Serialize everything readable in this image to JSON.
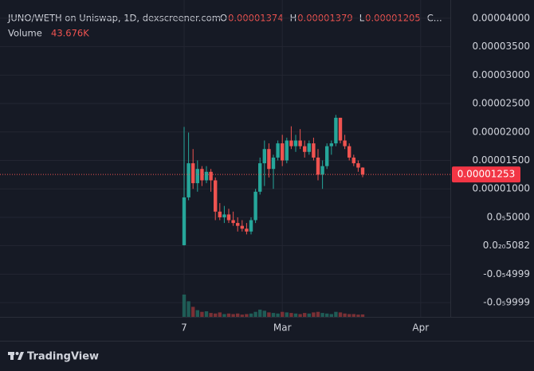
{
  "chart_data": {
    "type": "candlestick",
    "legend": {
      "title": "JUNO/WETH on Uniswap, 1D, dexscreener.com",
      "open_label": "O",
      "high_label": "H",
      "low_label": "L",
      "close_label": "C...",
      "volume_label": "Volume",
      "volume_value": "43.676K"
    },
    "x": [
      0,
      1,
      2,
      3,
      4,
      5,
      6,
      7,
      8,
      9,
      10,
      11,
      12,
      13,
      14,
      15,
      16,
      17,
      18,
      19,
      20,
      21,
      22,
      23,
      24,
      25,
      26,
      27,
      28,
      29,
      30,
      31,
      32,
      33,
      34,
      35,
      36,
      37,
      38,
      39,
      40
    ],
    "open": [
      1e-07,
      8.5e-06,
      1.45e-05,
      1.1e-05,
      1.35e-05,
      1.15e-05,
      1.3e-05,
      1.15e-05,
      6e-06,
      5e-06,
      5.5e-06,
      4.5e-06,
      4e-06,
      3.5e-06,
      3e-06,
      2.5e-06,
      4.5e-06,
      9.5e-06,
      1.45e-05,
      1.7e-05,
      1.35e-05,
      1.55e-05,
      1.8e-05,
      1.5e-05,
      1.85e-05,
      1.75e-05,
      1.85e-05,
      1.75e-05,
      1.65e-05,
      1.8e-05,
      1.55e-05,
      1.25e-05,
      1.4e-05,
      1.75e-05,
      1.8e-05,
      2.25e-05,
      1.85e-05,
      1.75e-05,
      1.55e-05,
      1.45e-05,
      1.374e-05
    ],
    "high": [
      2.09e-05,
      1.99e-05,
      1.7e-05,
      1.5e-05,
      1.4e-05,
      1.4e-05,
      1.35e-05,
      1.2e-05,
      7.5e-06,
      7e-06,
      6.5e-06,
      6e-06,
      5e-06,
      4.5e-06,
      4e-06,
      5e-06,
      1e-05,
      1.55e-05,
      1.85e-05,
      1.8e-05,
      1.6e-05,
      1.85e-05,
      1.95e-05,
      1.9e-05,
      2.1e-05,
      1.95e-05,
      2.05e-05,
      1.85e-05,
      1.85e-05,
      1.9e-05,
      1.7e-05,
      1.5e-05,
      1.8e-05,
      1.85e-05,
      2.3e-05,
      2.25e-05,
      1.95e-05,
      1.8e-05,
      1.6e-05,
      1.5e-05,
      1.379e-05
    ],
    "low": [
      5e-08,
      8e-06,
      1e-05,
      9.5e-06,
      1.05e-05,
      1.1e-05,
      9.5e-06,
      4.5e-06,
      4.5e-06,
      4e-06,
      4e-06,
      3.5e-06,
      2.5e-06,
      2.5e-06,
      2e-06,
      2e-06,
      4e-06,
      9e-06,
      1.05e-05,
      1.2e-05,
      1e-05,
      1.5e-05,
      1.4e-05,
      1.45e-05,
      1.7e-05,
      1.65e-05,
      1.7e-05,
      1.55e-05,
      1.6e-05,
      1.5e-05,
      1.15e-05,
      1e-05,
      1.35e-05,
      1.6e-05,
      1.75e-05,
      1.8e-05,
      1.7e-05,
      1.5e-05,
      1.4e-05,
      1.3e-05,
      1.205e-05
    ],
    "close": [
      8.5e-06,
      1.45e-05,
      1.1e-05,
      1.35e-05,
      1.15e-05,
      1.3e-05,
      1.15e-05,
      6e-06,
      5e-06,
      5.5e-06,
      4.5e-06,
      4e-06,
      3.5e-06,
      3e-06,
      2.5e-06,
      4.5e-06,
      9.5e-06,
      1.45e-05,
      1.7e-05,
      1.35e-05,
      1.55e-05,
      1.8e-05,
      1.5e-05,
      1.85e-05,
      1.75e-05,
      1.85e-05,
      1.75e-05,
      1.65e-05,
      1.8e-05,
      1.55e-05,
      1.25e-05,
      1.4e-05,
      1.75e-05,
      1.8e-05,
      2.25e-05,
      1.85e-05,
      1.75e-05,
      1.55e-05,
      1.45e-05,
      1.374e-05,
      1.253e-05
    ],
    "volume": [
      400000,
      280000,
      180000,
      120000,
      90000,
      100000,
      70000,
      60000,
      80000,
      50000,
      60000,
      50000,
      60000,
      40000,
      50000,
      60000,
      90000,
      130000,
      110000,
      80000,
      70000,
      60000,
      90000,
      80000,
      70000,
      60000,
      50000,
      70000,
      60000,
      80000,
      90000,
      70000,
      60000,
      50000,
      90000,
      80000,
      60000,
      50000,
      50000,
      40000,
      43676
    ],
    "up_color": "#26a69a",
    "down_color": "#ef5350",
    "xlim": [
      -41.25,
      59.64
    ],
    "xticks": [
      {
        "value": 0,
        "label": "7"
      },
      {
        "value": 22,
        "label": "Mar"
      },
      {
        "value": 53,
        "label": "Apr"
      }
    ],
    "ylim": [
      -1.25e-05,
      4.32e-05
    ],
    "yticks": [
      {
        "value": 4e-05,
        "label": "0.00004000"
      },
      {
        "value": 3.5e-05,
        "label": "0.00003500"
      },
      {
        "value": 3e-05,
        "label": "0.00003000"
      },
      {
        "value": 2.5e-05,
        "label": "0.00002500"
      },
      {
        "value": 2e-05,
        "label": "0.00002000"
      },
      {
        "value": 1.5e-05,
        "label": "0.00001500"
      },
      {
        "value": 1e-05,
        "label": "0.00001000"
      },
      {
        "value": 5e-06,
        "label": "0.0₅5000"
      },
      {
        "value": 5.082e-21,
        "label": "0.0₂₀5082"
      },
      {
        "value": -4.999e-06,
        "label": "-0.0₅4999"
      },
      {
        "value": -9.999e-06,
        "label": "-0.0₅9999"
      }
    ],
    "grid": true,
    "footer": "TradingView"
  }
}
